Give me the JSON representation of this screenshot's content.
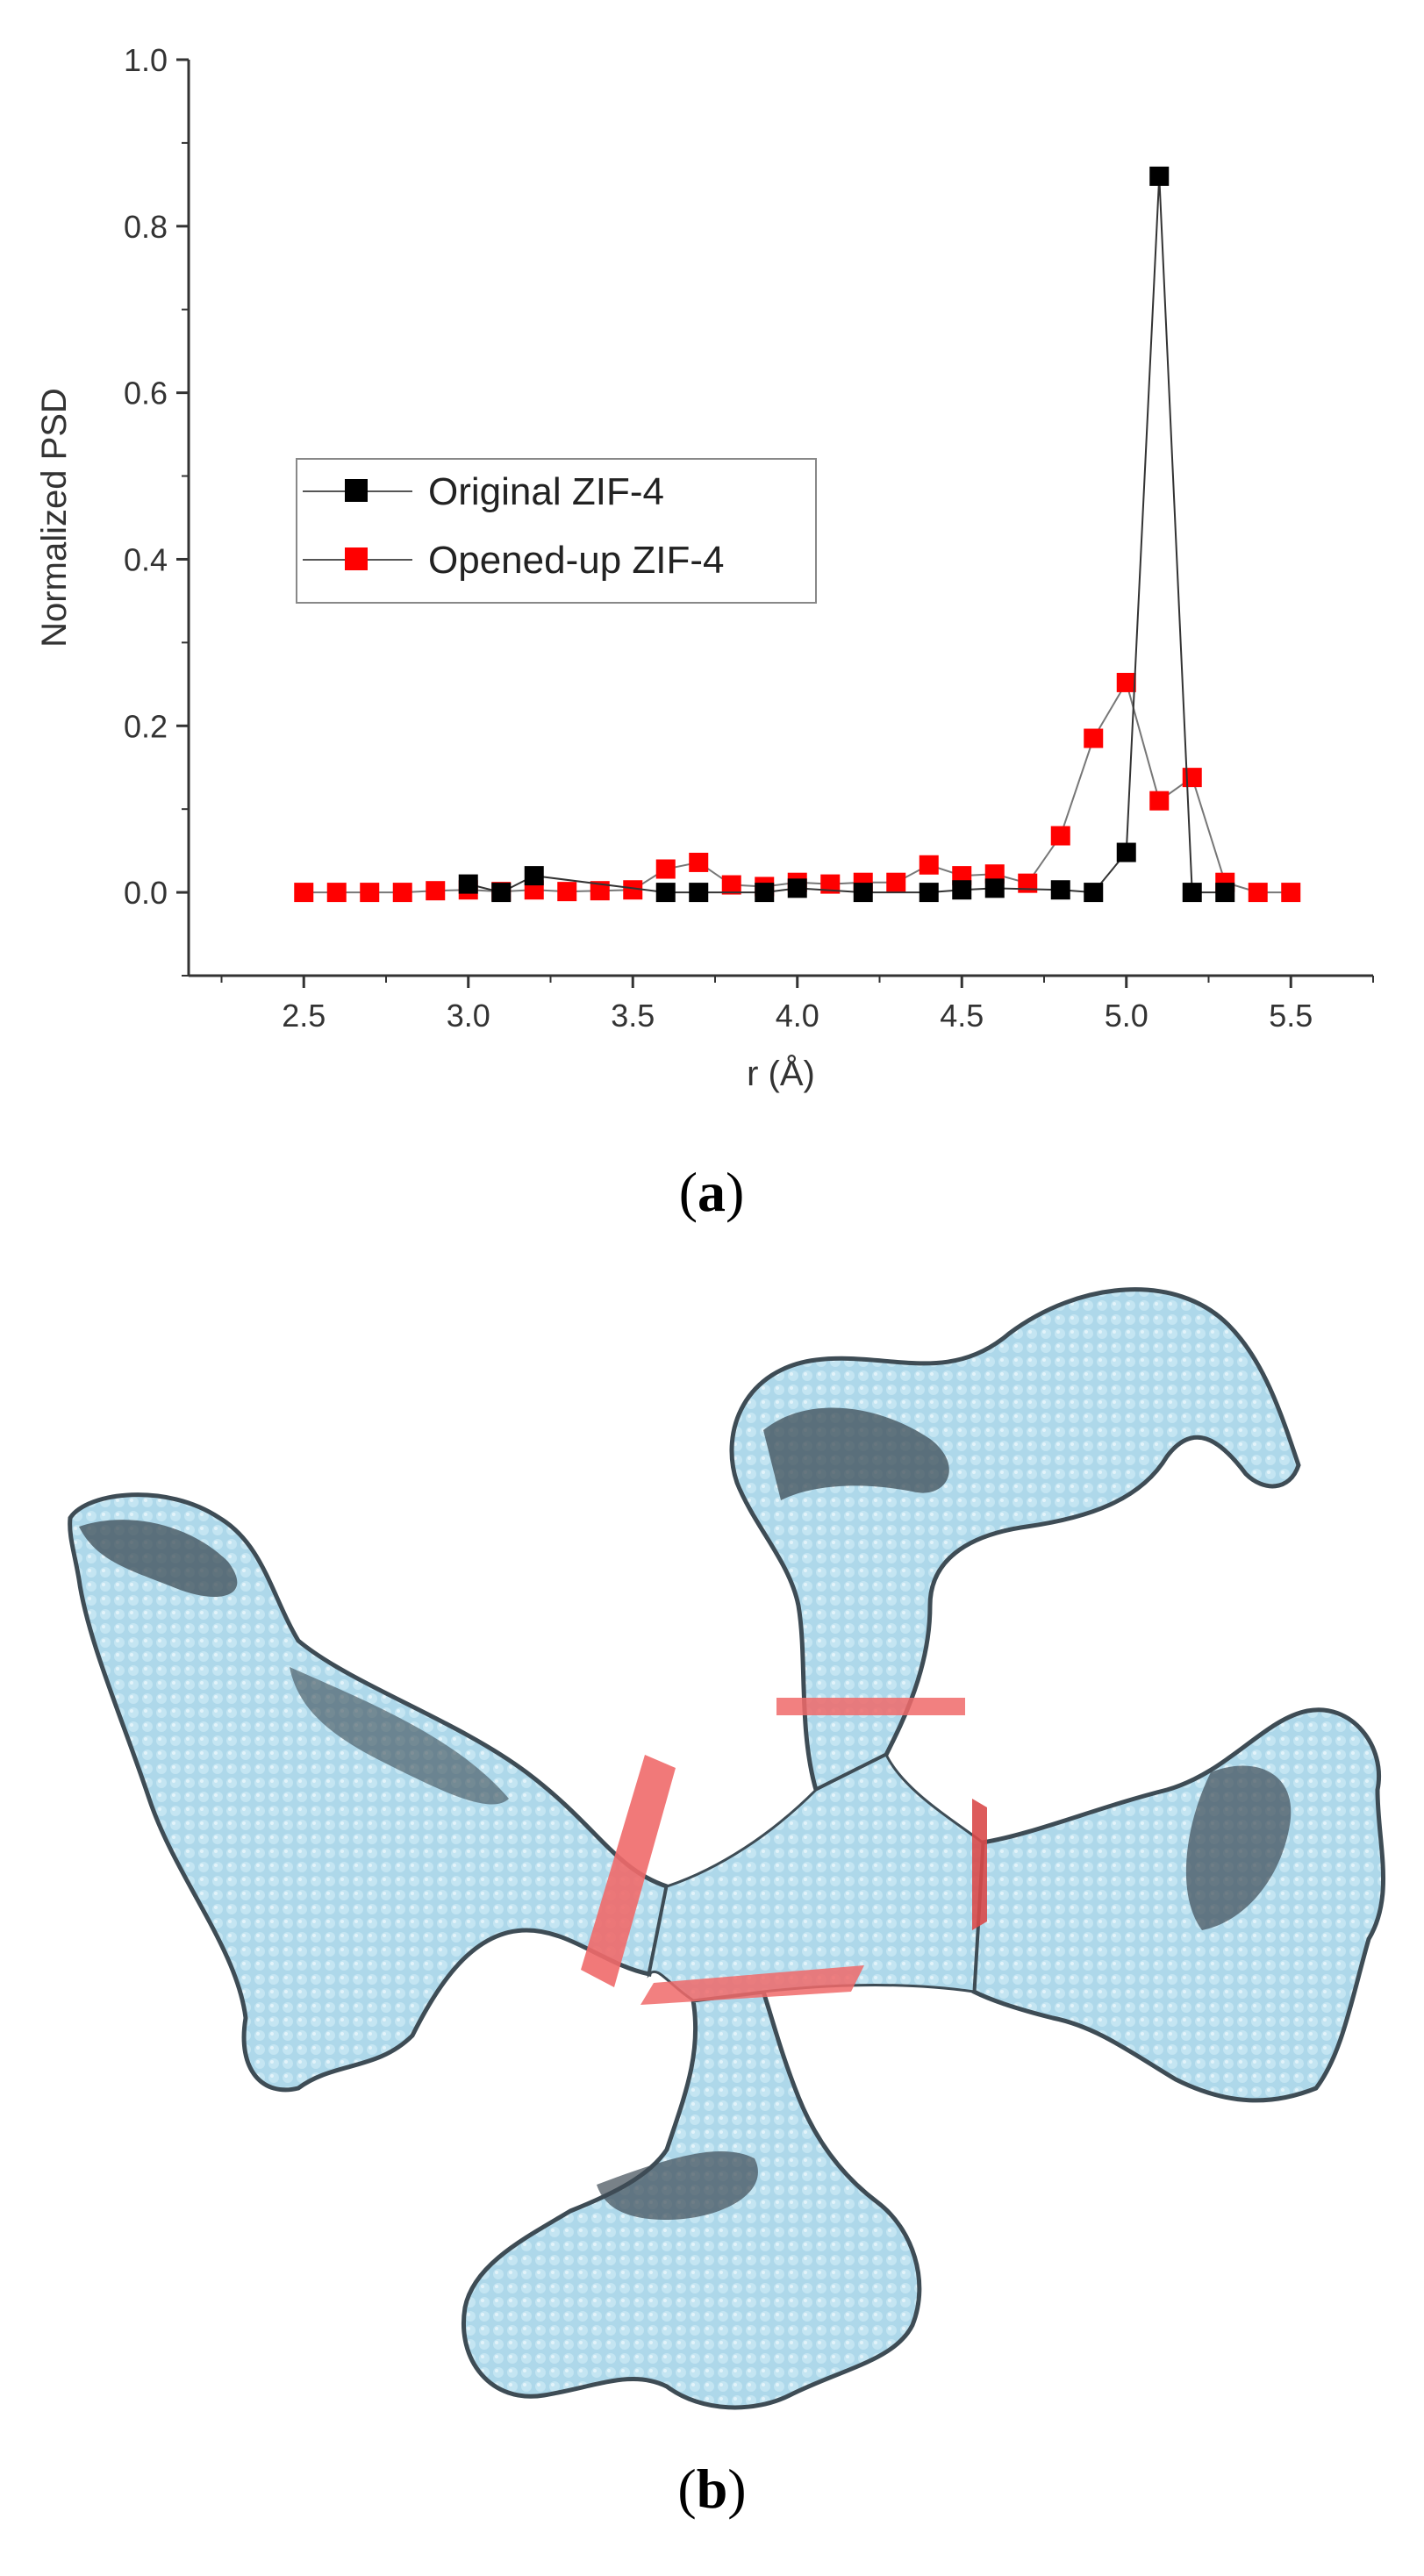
{
  "chart_data": {
    "type": "scatter",
    "xlabel": "r (Å)",
    "ylabel": "Normalized PSD",
    "xlim": [
      2.15,
      5.75
    ],
    "ylim": [
      -0.1,
      1.0
    ],
    "x_ticks": [
      "2.5",
      "3.0",
      "3.5",
      "4.0",
      "4.5",
      "5.0",
      "5.5"
    ],
    "y_ticks": [
      "0.0",
      "0.2",
      "0.4",
      "0.6",
      "0.8",
      "1.0"
    ],
    "legend_position": "middle-left",
    "grid": false,
    "series": [
      {
        "name": "Original ZIF-4",
        "color": "#000000",
        "x": [
          3.0,
          3.1,
          3.2,
          3.6,
          3.7,
          3.9,
          4.0,
          4.2,
          4.4,
          4.5,
          4.6,
          4.8,
          4.9,
          5.0,
          5.1,
          5.2,
          5.3
        ],
        "y": [
          0.01,
          0.0,
          0.02,
          0.0,
          0.0,
          0.0,
          0.005,
          0.0,
          0.0,
          0.003,
          0.005,
          0.003,
          0.0,
          0.048,
          0.86,
          0.0,
          0.0
        ]
      },
      {
        "name": "Opened-up ZIF-4",
        "color": "#ff0000",
        "x": [
          2.5,
          2.6,
          2.7,
          2.8,
          2.9,
          3.0,
          3.1,
          3.2,
          3.3,
          3.4,
          3.5,
          3.6,
          3.7,
          3.8,
          3.9,
          4.0,
          4.1,
          4.2,
          4.3,
          4.4,
          4.5,
          4.6,
          4.7,
          4.8,
          4.9,
          5.0,
          5.1,
          5.2,
          5.3,
          5.4,
          5.5
        ],
        "y": [
          0.0,
          0.0,
          0.0,
          0.0,
          0.002,
          0.003,
          0.001,
          0.003,
          0.001,
          0.002,
          0.003,
          0.028,
          0.036,
          0.009,
          0.007,
          0.012,
          0.01,
          0.012,
          0.012,
          0.033,
          0.02,
          0.022,
          0.011,
          0.068,
          0.185,
          0.252,
          0.11,
          0.138,
          0.012,
          0.0,
          0.0
        ]
      }
    ]
  },
  "labels": {
    "panel_a_open": "(",
    "panel_a_letter": "a",
    "panel_a_close": ")",
    "panel_b_open": "(",
    "panel_b_letter": "b",
    "panel_b_close": ")"
  },
  "colors": {
    "pore_fill": "#aed8ea",
    "pore_shadow": "#3e4c55",
    "window_red": "#f06a6a"
  }
}
